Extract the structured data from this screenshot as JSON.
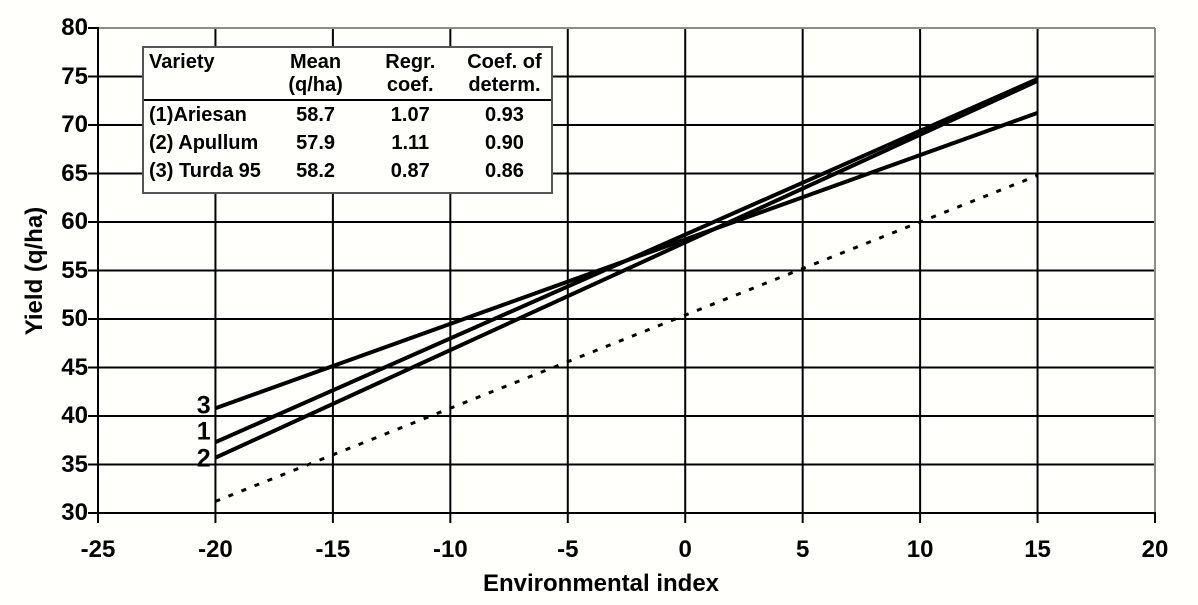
{
  "chart_data": {
    "type": "line",
    "title": "",
    "xlabel": "Environmental index",
    "ylabel": "Yield (q/ha)",
    "xlim": [
      -25,
      20
    ],
    "ylim": [
      30,
      80
    ],
    "x_ticks": [
      -25,
      -20,
      -15,
      -10,
      -5,
      0,
      5,
      10,
      15,
      20
    ],
    "y_ticks": [
      30,
      35,
      40,
      45,
      50,
      55,
      60,
      65,
      70,
      75,
      80
    ],
    "grid": "on",
    "legend_position": "top-left",
    "series": [
      {
        "name": "(1) Ariesan",
        "label": "1",
        "mean_qha": 58.7,
        "regr_coef": 1.07,
        "coef_determ": 0.93,
        "style": "solid",
        "points": [
          [
            -20,
            37.3
          ],
          [
            15,
            74.75
          ]
        ]
      },
      {
        "name": "(2) Apullum",
        "label": "2",
        "mean_qha": 57.9,
        "regr_coef": 1.11,
        "coef_determ": 0.9,
        "style": "solid",
        "points": [
          [
            -20,
            35.7
          ],
          [
            15,
            74.55
          ]
        ]
      },
      {
        "name": "(3) Turda 95",
        "label": "3",
        "mean_qha": 58.2,
        "regr_coef": 0.87,
        "coef_determ": 0.86,
        "style": "solid",
        "points": [
          [
            -20,
            40.8
          ],
          [
            15,
            71.25
          ]
        ]
      },
      {
        "name": "environmental-index-reference",
        "label": "",
        "style": "dashed",
        "points": [
          [
            -20,
            31.2
          ],
          [
            15,
            64.8
          ]
        ]
      }
    ],
    "line_labels": [
      {
        "text": "3",
        "x": -20.5,
        "y": 41.0
      },
      {
        "text": "1",
        "x": -20.5,
        "y": 38.4
      },
      {
        "text": "2",
        "x": -20.5,
        "y": 35.6
      }
    ]
  },
  "legend": {
    "headers": [
      [
        "Variety",
        ""
      ],
      [
        "Mean",
        "(q/ha)"
      ],
      [
        "Regr.",
        "coef."
      ],
      [
        "Coef. of",
        "determ."
      ]
    ],
    "rows": [
      [
        "(1)Ariesan",
        "58.7",
        "1.07",
        "0.93"
      ],
      [
        "(2) Apullum",
        "57.9",
        "1.11",
        "0.90"
      ],
      [
        "(3) Turda 95",
        "58.2",
        "0.87",
        "0.86"
      ]
    ]
  },
  "colors": {
    "line": "#000000",
    "grid": "#000000",
    "frame": "#8c8c8c",
    "background": "#fffffc",
    "text": "#000000"
  }
}
